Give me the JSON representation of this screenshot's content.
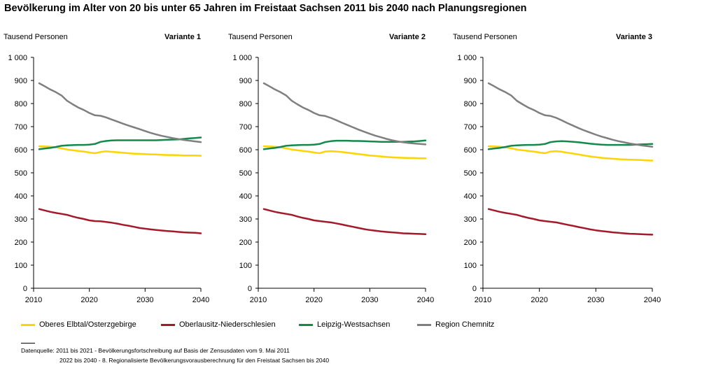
{
  "title": "Bevölkerung im Alter von 20 bis unter 65 Jahren im Freistaat Sachsen 2011 bis 2040 nach Planungsregionen",
  "colors": {
    "Oberes Elbtal/Osterzgebirge": "#ffd400",
    "Oberlausitz-Niederschlesien": "#a31a2b",
    "Leipzig-Westsachsen": "#138a4c",
    "Region Chemnitz": "#7f7f7f"
  },
  "legend": [
    {
      "label": "Oberes Elbtal/Osterzgebirge",
      "color": "#ffd400"
    },
    {
      "label": "Oberlausitz-Niederschlesien",
      "color": "#a31a2b"
    },
    {
      "label": "Leipzig-Westsachsen",
      "color": "#138a4c"
    },
    {
      "label": "Region Chemnitz",
      "color": "#7f7f7f"
    }
  ],
  "footnote": {
    "line1": "Datenquelle: 2011 bis 2021 - Bevölkerungsfortschreibung auf Basis der Zensusdaten vom 9. Mai 2011",
    "line2": "2022 bis 2040 - 8. Regionalisierte Bevölkerungsvorausberechnung für den Freistaat Sachsen bis 2040"
  },
  "chart_data": [
    {
      "type": "line",
      "title": "Variante 1",
      "ylabel": "Tausend Personen",
      "xlabel": "",
      "ylim": [
        0,
        1000
      ],
      "xlim": [
        2010,
        2040
      ],
      "x_ticks": [
        "2010",
        "2020",
        "2030",
        "2040"
      ],
      "y_ticks": [
        "0",
        "100",
        "200",
        "300",
        "400",
        "500",
        "600",
        "700",
        "800",
        "900",
        "1 000"
      ],
      "x": [
        2011,
        2012,
        2013,
        2014,
        2015,
        2016,
        2017,
        2018,
        2019,
        2020,
        2021,
        2022,
        2023,
        2024,
        2025,
        2026,
        2027,
        2028,
        2029,
        2030,
        2031,
        2032,
        2033,
        2034,
        2035,
        2036,
        2037,
        2038,
        2039,
        2040
      ],
      "series": [
        {
          "name": "Oberes Elbtal/Osterzgebirge",
          "values": [
            615,
            614,
            613,
            610,
            606,
            601,
            598,
            595,
            592,
            588,
            585,
            590,
            593,
            591,
            589,
            587,
            585,
            583,
            582,
            581,
            580,
            579,
            578,
            577,
            577,
            576,
            575,
            575,
            575,
            574
          ]
        },
        {
          "name": "Oberlausitz-Niederschlesien",
          "values": [
            343,
            337,
            331,
            326,
            322,
            318,
            311,
            305,
            300,
            294,
            291,
            290,
            287,
            284,
            280,
            275,
            271,
            266,
            261,
            258,
            255,
            252,
            250,
            248,
            246,
            244,
            242,
            241,
            240,
            238
          ]
        },
        {
          "name": "Leipzig-Westsachsen",
          "values": [
            602,
            605,
            608,
            612,
            617,
            619,
            620,
            621,
            621,
            622,
            625,
            634,
            638,
            640,
            641,
            641,
            641,
            641,
            641,
            641,
            641,
            641,
            642,
            643,
            644,
            645,
            647,
            649,
            651,
            653
          ]
        },
        {
          "name": "Region Chemnitz",
          "values": [
            888,
            875,
            861,
            849,
            835,
            812,
            797,
            783,
            772,
            759,
            749,
            747,
            740,
            731,
            722,
            713,
            705,
            697,
            689,
            681,
            673,
            666,
            660,
            655,
            650,
            646,
            642,
            639,
            636,
            633
          ]
        }
      ]
    },
    {
      "type": "line",
      "title": "Variante 2",
      "ylabel": "Tausend Personen",
      "xlabel": "",
      "ylim": [
        0,
        1000
      ],
      "xlim": [
        2010,
        2040
      ],
      "x_ticks": [
        "2010",
        "2020",
        "2030",
        "2040"
      ],
      "y_ticks": [
        "0",
        "100",
        "200",
        "300",
        "400",
        "500",
        "600",
        "700",
        "800",
        "900",
        "1 000"
      ],
      "x": [
        2011,
        2012,
        2013,
        2014,
        2015,
        2016,
        2017,
        2018,
        2019,
        2020,
        2021,
        2022,
        2023,
        2024,
        2025,
        2026,
        2027,
        2028,
        2029,
        2030,
        2031,
        2032,
        2033,
        2034,
        2035,
        2036,
        2037,
        2038,
        2039,
        2040
      ],
      "series": [
        {
          "name": "Oberes Elbtal/Osterzgebirge",
          "values": [
            615,
            614,
            613,
            610,
            606,
            601,
            598,
            595,
            592,
            588,
            585,
            592,
            594,
            592,
            590,
            587,
            584,
            581,
            578,
            575,
            573,
            571,
            569,
            567,
            566,
            565,
            564,
            564,
            563,
            563
          ]
        },
        {
          "name": "Oberlausitz-Niederschlesien",
          "values": [
            343,
            337,
            331,
            326,
            322,
            318,
            311,
            305,
            300,
            294,
            291,
            288,
            285,
            281,
            276,
            271,
            266,
            261,
            256,
            252,
            249,
            246,
            244,
            242,
            240,
            238,
            237,
            236,
            235,
            234
          ]
        },
        {
          "name": "Leipzig-Westsachsen",
          "values": [
            602,
            605,
            608,
            612,
            617,
            619,
            620,
            621,
            621,
            622,
            625,
            633,
            637,
            639,
            639,
            639,
            638,
            638,
            637,
            636,
            635,
            634,
            634,
            634,
            634,
            634,
            635,
            636,
            638,
            640
          ]
        },
        {
          "name": "Region Chemnitz",
          "values": [
            888,
            875,
            861,
            849,
            835,
            812,
            797,
            783,
            772,
            759,
            749,
            746,
            738,
            728,
            717,
            707,
            697,
            687,
            678,
            669,
            661,
            654,
            647,
            641,
            636,
            632,
            629,
            627,
            625,
            623
          ]
        }
      ]
    },
    {
      "type": "line",
      "title": "Variante 3",
      "ylabel": "Tausend Personen",
      "xlabel": "",
      "ylim": [
        0,
        1000
      ],
      "xlim": [
        2010,
        2040
      ],
      "x_ticks": [
        "2010",
        "2020",
        "2030",
        "2040"
      ],
      "y_ticks": [
        "0",
        "100",
        "200",
        "300",
        "400",
        "500",
        "600",
        "700",
        "800",
        "900",
        "1 000"
      ],
      "x": [
        2011,
        2012,
        2013,
        2014,
        2015,
        2016,
        2017,
        2018,
        2019,
        2020,
        2021,
        2022,
        2023,
        2024,
        2025,
        2026,
        2027,
        2028,
        2029,
        2030,
        2031,
        2032,
        2033,
        2034,
        2035,
        2036,
        2037,
        2038,
        2039,
        2040
      ],
      "series": [
        {
          "name": "Oberes Elbtal/Osterzgebirge",
          "values": [
            615,
            614,
            613,
            610,
            606,
            601,
            598,
            595,
            592,
            588,
            585,
            592,
            594,
            591,
            587,
            583,
            579,
            575,
            571,
            568,
            565,
            563,
            561,
            559,
            558,
            557,
            556,
            555,
            554,
            553
          ]
        },
        {
          "name": "Oberlausitz-Niederschlesien",
          "values": [
            343,
            337,
            331,
            326,
            322,
            318,
            311,
            305,
            300,
            294,
            291,
            288,
            285,
            280,
            275,
            270,
            265,
            260,
            255,
            251,
            248,
            245,
            242,
            240,
            238,
            236,
            235,
            234,
            233,
            232
          ]
        },
        {
          "name": "Leipzig-Westsachsen",
          "values": [
            602,
            605,
            608,
            612,
            617,
            619,
            620,
            621,
            621,
            622,
            625,
            633,
            636,
            637,
            636,
            634,
            632,
            629,
            626,
            624,
            622,
            621,
            621,
            621,
            621,
            621,
            622,
            623,
            624,
            625
          ]
        },
        {
          "name": "Region Chemnitz",
          "values": [
            888,
            875,
            861,
            849,
            835,
            812,
            797,
            783,
            772,
            759,
            749,
            746,
            738,
            727,
            715,
            704,
            693,
            683,
            674,
            665,
            657,
            650,
            643,
            637,
            632,
            627,
            623,
            619,
            616,
            613
          ]
        }
      ]
    }
  ]
}
